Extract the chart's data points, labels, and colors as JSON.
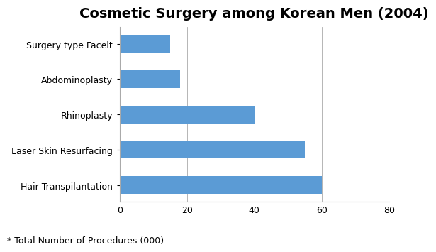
{
  "title": "Cosmetic Surgery among Korean Men (2004)",
  "categories": [
    "Hair Transpilantation",
    "Laser Skin Resurfacing",
    "Rhinoplasty",
    "Abdominoplasty",
    "Surgery type Facelt"
  ],
  "values": [
    60,
    55,
    40,
    18,
    15
  ],
  "bar_color": "#5B9BD5",
  "xlim": [
    0,
    80
  ],
  "xticks": [
    0,
    20,
    40,
    60,
    80
  ],
  "footnote": "* Total Number of Procedures (000)",
  "title_fontsize": 14,
  "tick_fontsize": 9,
  "footnote_fontsize": 9,
  "label_fontsize": 9,
  "background_color": "#ffffff",
  "bar_height": 0.5,
  "grid_color": "#aaaaaa",
  "spine_color": "#aaaaaa"
}
